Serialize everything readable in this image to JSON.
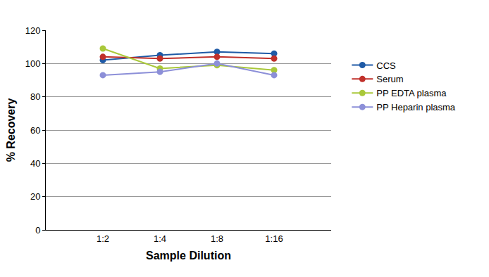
{
  "chart_data": {
    "type": "line",
    "x_label": "Sample Dilution",
    "y_label": "% Recovery",
    "categories": [
      "1:2",
      "1:4",
      "1:8",
      "1:16"
    ],
    "series": [
      {
        "name": "CCS",
        "color": "#1f5aa6",
        "values": [
          102,
          105,
          107,
          106
        ]
      },
      {
        "name": "Serum",
        "color": "#c0302a",
        "values": [
          104,
          103,
          104,
          103
        ]
      },
      {
        "name": "PP EDTA plasma",
        "color": "#a9c83a",
        "values": [
          109,
          97,
          99,
          96
        ]
      },
      {
        "name": "PP Heparin plasma",
        "color": "#8c8fd8",
        "values": [
          93,
          95,
          100,
          93
        ]
      }
    ],
    "ylim": [
      0,
      120
    ],
    "yticks": [
      0,
      20,
      40,
      60,
      80,
      100,
      120
    ],
    "grid": true,
    "legend": "right",
    "marker": "circle"
  }
}
